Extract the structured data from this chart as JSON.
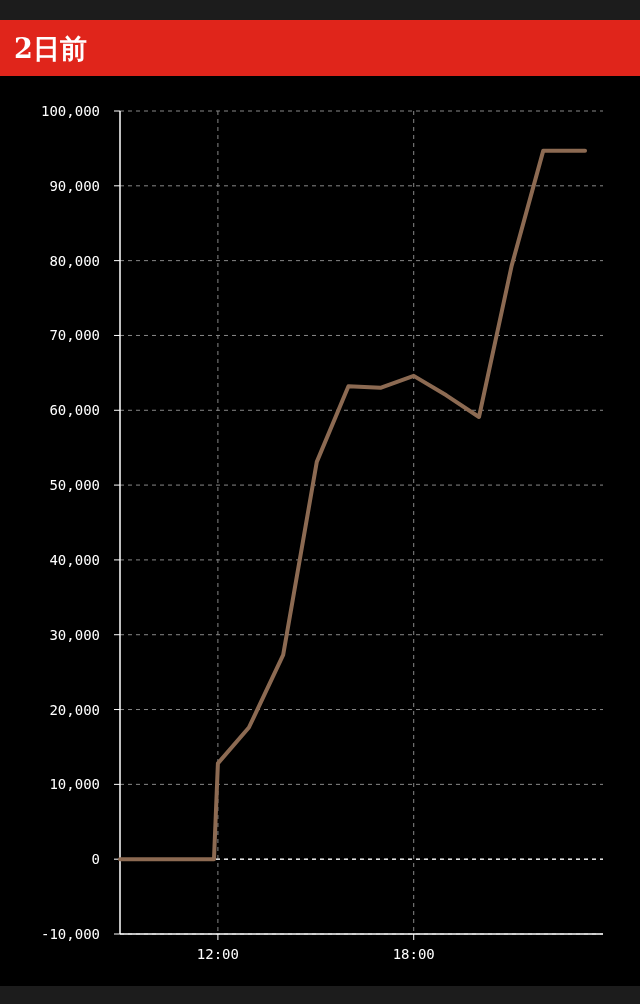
{
  "chart_data": {
    "type": "line",
    "title": "2日前",
    "x": [
      9,
      11.88,
      12,
      12.95,
      14,
      15.03,
      16,
      16.98,
      18,
      19,
      20,
      21,
      21.97,
      23.25
    ],
    "series": [
      {
        "color": "#8c6a52",
        "values": [
          0,
          0,
          12800,
          17600,
          27300,
          53100,
          63200,
          63000,
          64600,
          62000,
          59100,
          79300,
          94700,
          94700
        ]
      }
    ],
    "xlim": [
      9,
      23.8
    ],
    "ylim": [
      -10000,
      100000
    ],
    "xticks": [
      {
        "value": 12,
        "label": "12:00"
      },
      {
        "value": 18,
        "label": "18:00"
      }
    ],
    "yticks": [
      {
        "value": -10000,
        "label": "-10,000"
      },
      {
        "value": 0,
        "label": "0"
      },
      {
        "value": 10000,
        "label": "10,000"
      },
      {
        "value": 20000,
        "label": "20,000"
      },
      {
        "value": 30000,
        "label": "30,000"
      },
      {
        "value": 40000,
        "label": "40,000"
      },
      {
        "value": 50000,
        "label": "50,000"
      },
      {
        "value": 60000,
        "label": "60,000"
      },
      {
        "value": 70000,
        "label": "70,000"
      },
      {
        "value": 80000,
        "label": "80,000"
      },
      {
        "value": 90000,
        "label": "90,000"
      },
      {
        "value": 100000,
        "label": "100,000"
      }
    ],
    "ref_lines": [
      {
        "axis": "y",
        "value": 0,
        "color": "#dddddd",
        "line_style": "dashed"
      }
    ],
    "grid": true
  }
}
